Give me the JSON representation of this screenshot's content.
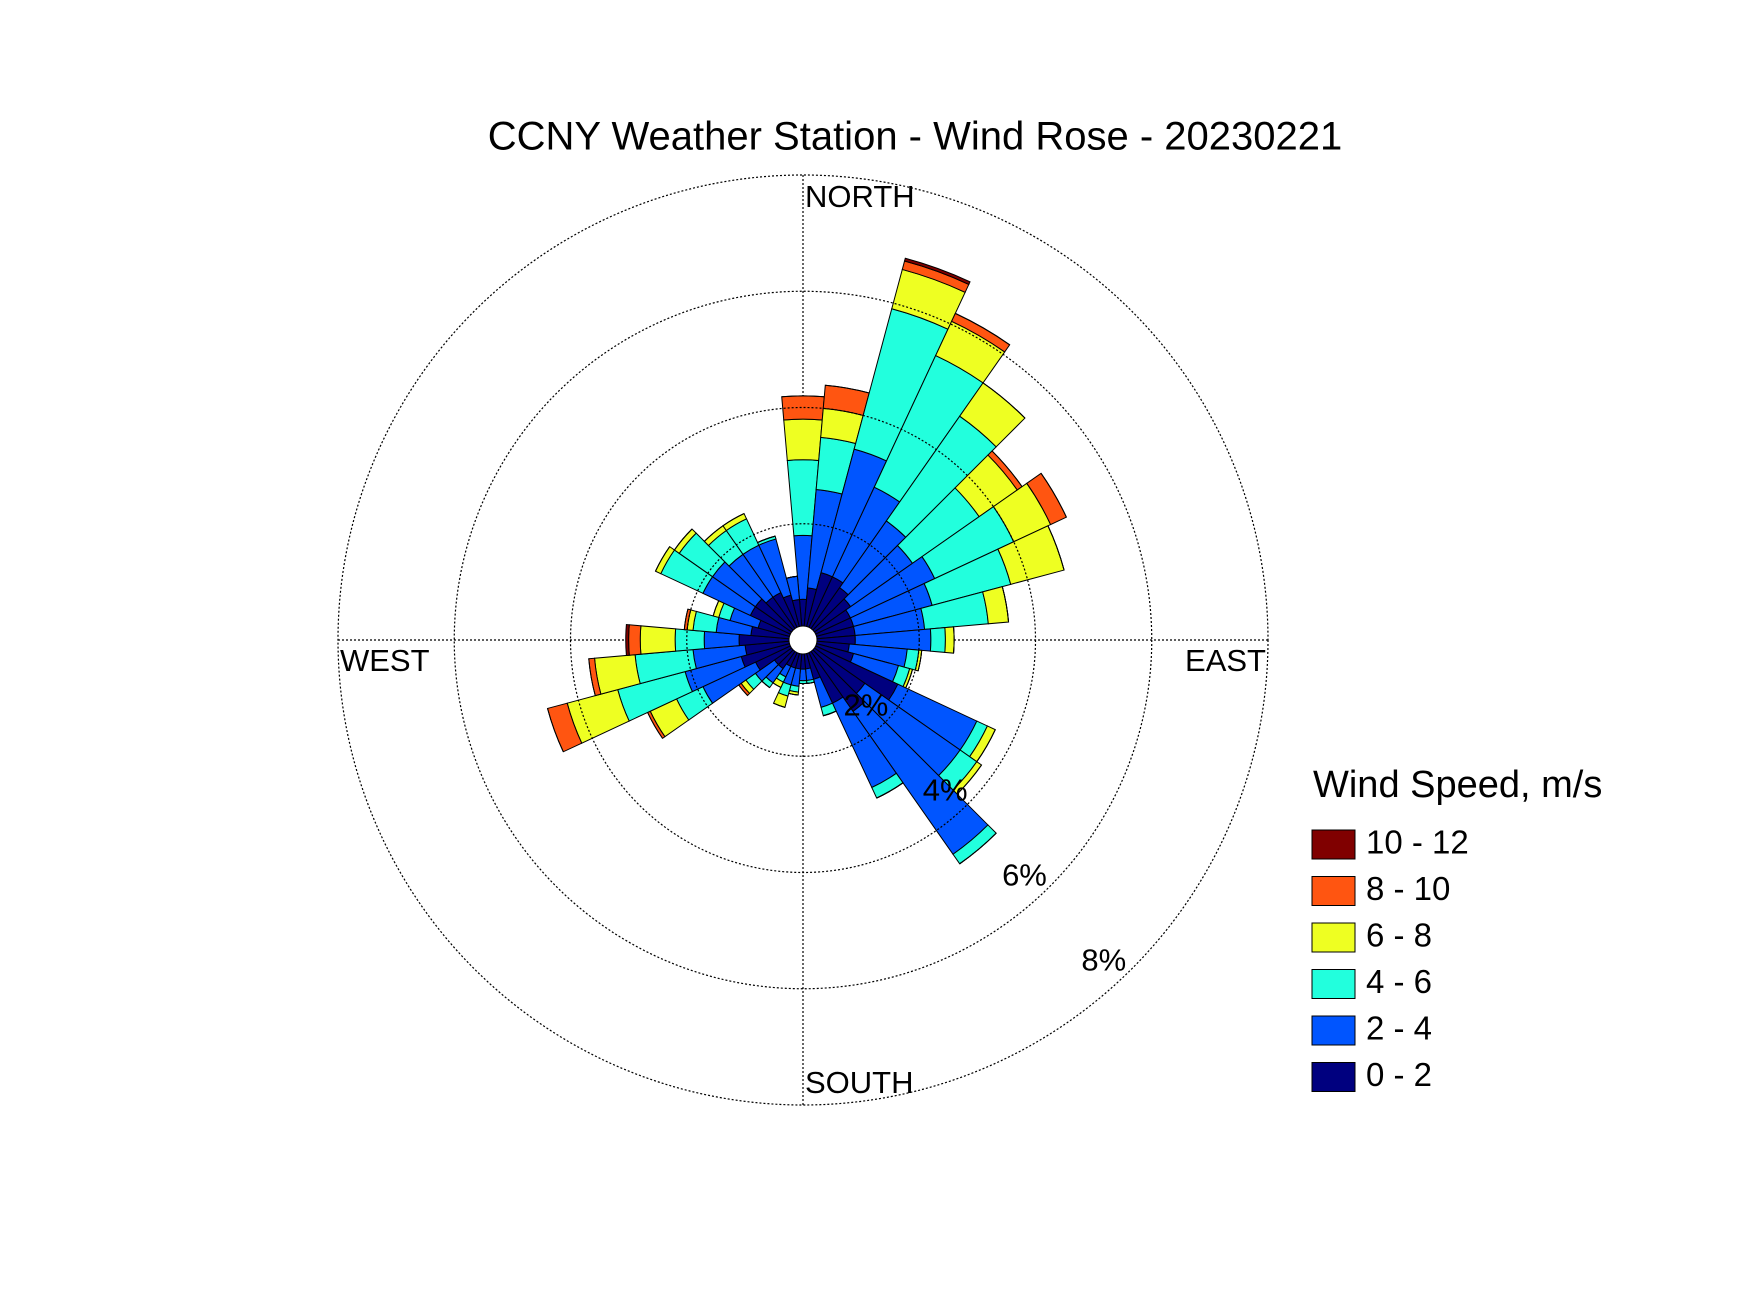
{
  "chart_data": {
    "type": "windrose",
    "title": "CCNY Weather Station - Wind Rose - 20230221",
    "x": [
      0,
      10,
      20,
      30,
      40,
      50,
      60,
      70,
      80,
      90,
      100,
      110,
      120,
      130,
      140,
      150,
      160,
      170,
      180,
      190,
      200,
      210,
      220,
      230,
      240,
      250,
      260,
      270,
      280,
      290,
      300,
      310,
      320,
      330,
      340,
      350
    ],
    "direction_labels": [
      "NORTH",
      "EAST",
      "SOUTH",
      "WEST"
    ],
    "rlim": [
      0,
      8
    ],
    "rticks": [
      {
        "value": 2,
        "label": "2%"
      },
      {
        "value": 4,
        "label": "4%"
      },
      {
        "value": 6,
        "label": "6%"
      },
      {
        "value": 8,
        "label": "8%"
      }
    ],
    "legend_title": "Wind Speed, m/s",
    "series": [
      {
        "name": "0 - 2",
        "color": "#00007f",
        "values": [
          0.7,
          0.9,
          1.2,
          1.2,
          1.1,
          1.0,
          0.9,
          0.9,
          0.9,
          0.9,
          0.8,
          0.9,
          1.8,
          1.3,
          1.5,
          1.2,
          0.7,
          0.5,
          0.5,
          0.5,
          0.5,
          0.5,
          0.6,
          0.6,
          0.9,
          1.1,
          1.0,
          1.1,
          0.9,
          0.8,
          1.0,
          1.0,
          0.9,
          0.9,
          0.8,
          0.7
        ]
      },
      {
        "name": "2 - 4",
        "color": "#0055ff",
        "values": [
          1.1,
          1.7,
          2.2,
          1.7,
          1.4,
          1.3,
          1.6,
          1.4,
          1.2,
          1.3,
          1.0,
          0.8,
          1.5,
          2.0,
          3.0,
          1.6,
          0.5,
          0.2,
          0.2,
          0.3,
          0.3,
          0.2,
          0.3,
          0.4,
          1.0,
          1.0,
          0.9,
          0.6,
          0.6,
          0.5,
          0.9,
          0.9,
          0.9,
          0.9,
          1.0,
          0.4
        ]
      },
      {
        "name": "4 - 6",
        "color": "#22ffdd",
        "values": [
          1.3,
          0.9,
          2.5,
          2.5,
          2.2,
          1.4,
          1.5,
          1.4,
          1.1,
          0.25,
          0.2,
          0.2,
          0.2,
          0.35,
          0.2,
          0.2,
          0.15,
          0.05,
          0.05,
          0.1,
          0.2,
          0.1,
          0.1,
          0.2,
          0.5,
          1.2,
          1.0,
          0.5,
          0.4,
          0.2,
          0.8,
          0.7,
          0.5,
          0.5,
          0.05,
          0
        ]
      },
      {
        "name": "6 - 8",
        "color": "#eeff22",
        "values": [
          0.7,
          0.5,
          0.7,
          0.65,
          0.7,
          0.8,
          0.7,
          0.95,
          0.35,
          0.15,
          0.05,
          0.05,
          0.15,
          0.1,
          0,
          0,
          0,
          0,
          0,
          0.05,
          0.2,
          0.1,
          0,
          0.1,
          0.5,
          0.9,
          0.7,
          0.6,
          0.1,
          0.1,
          0.1,
          0.1,
          0.1,
          0.1,
          0,
          0
        ]
      },
      {
        "name": "8 - 10",
        "color": "#ff5511",
        "values": [
          0.4,
          0.4,
          0.15,
          0.15,
          0,
          0.1,
          0.3,
          0,
          0,
          0,
          0,
          0,
          0,
          0,
          0,
          0,
          0,
          0,
          0,
          0,
          0,
          0,
          0,
          0.05,
          0.05,
          0.35,
          0.1,
          0.2,
          0.05,
          0,
          0,
          0,
          0,
          0,
          0,
          0
        ]
      },
      {
        "name": "10 - 12",
        "color": "#800000",
        "values": [
          0,
          0,
          0.05,
          0,
          0,
          0,
          0,
          0,
          0,
          0,
          0,
          0,
          0,
          0,
          0,
          0,
          0,
          0,
          0,
          0,
          0,
          0,
          0,
          0,
          0,
          0,
          0,
          0.05,
          0,
          0,
          0,
          0,
          0,
          0,
          0,
          0
        ]
      }
    ]
  }
}
